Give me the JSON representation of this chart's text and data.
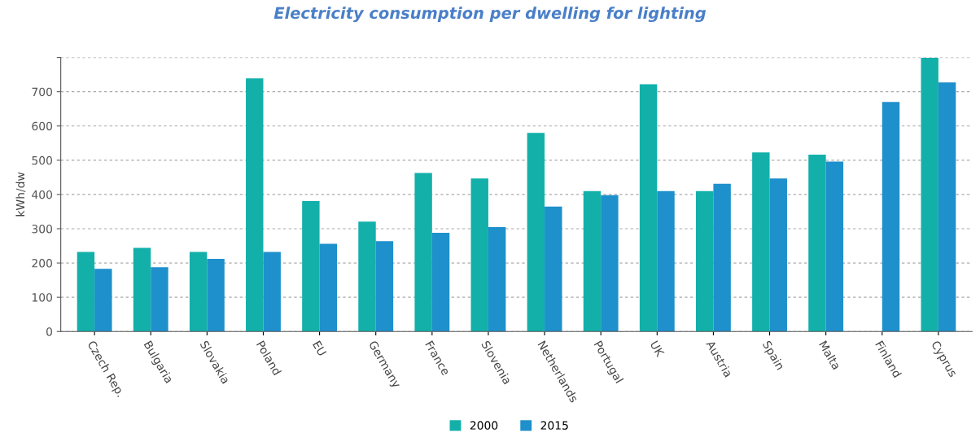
{
  "chart_data": {
    "type": "bar",
    "title": "Electricity consumption per dwelling for lighting",
    "ylabel": "kWh/dw",
    "categories": [
      "Czech Rep.",
      "Bulgaria",
      "Slovakia",
      "Poland",
      "EU",
      "Germany",
      "France",
      "Slovenia",
      "Netherlands",
      "Portugal",
      "UK",
      "Austria",
      "Spain",
      "Malta",
      "Finland",
      "Cyprus"
    ],
    "series": [
      {
        "name": "2000",
        "color": "#13b0aa",
        "values": [
          232,
          244,
          232,
          739,
          381,
          321,
          463,
          447,
          580,
          410,
          722,
          410,
          523,
          516,
          null,
          799
        ]
      },
      {
        "name": "2015",
        "color": "#1e90cc",
        "values": [
          183,
          188,
          212,
          232,
          256,
          264,
          288,
          305,
          365,
          398,
          410,
          431,
          447,
          496,
          670,
          727
        ]
      }
    ],
    "ylim": [
      0,
      800
    ],
    "yticks": [
      0,
      100,
      200,
      300,
      400,
      500,
      600,
      700,
      {
        "value": 800,
        "label": null
      }
    ],
    "grid": "y",
    "legend": "bottom"
  }
}
